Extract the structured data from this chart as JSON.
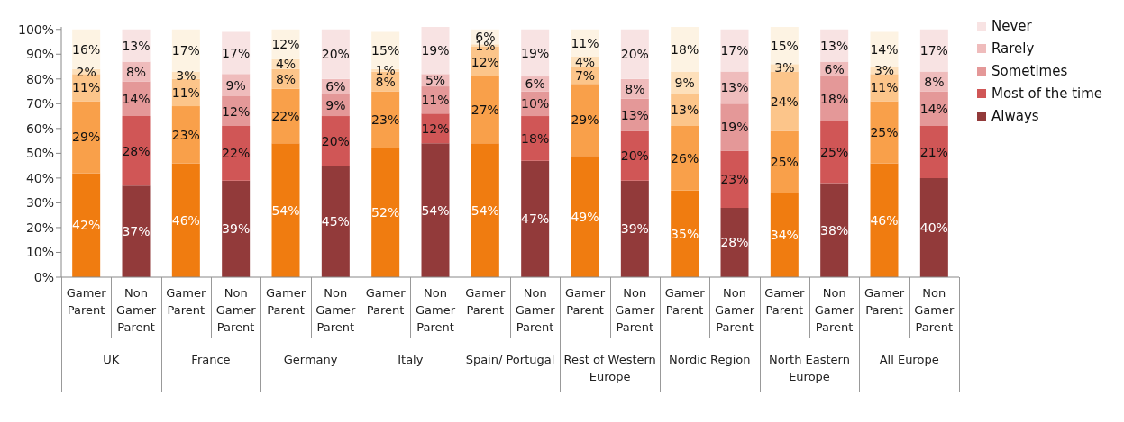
{
  "chart_data": {
    "type": "bar",
    "stacked": true,
    "categories": [
      "Gamer Parent",
      "Non Gamer Parent",
      "Gamer Parent",
      "Non Gamer Parent",
      "Gamer Parent",
      "Non Gamer Parent",
      "Gamer Parent",
      "Non Gamer Parent",
      "Gamer Parent",
      "Non Gamer Parent",
      "Gamer Parent",
      "Non Gamer Parent",
      "Gamer Parent",
      "Non Gamer Parent",
      "Gamer Parent",
      "Non Gamer Parent",
      "Gamer Parent",
      "Non Gamer Parent"
    ],
    "annotations": [
      "UK",
      "France",
      "Germany",
      "Italy",
      "Spain/ Portugal",
      "Rest of Western Europe",
      "Nordic Region",
      "North Eastern Europe",
      "All Europe"
    ],
    "series": [
      {
        "name": "Always",
        "color": "#923a3a",
        "colors": [
          "#f07c10",
          "#923a3a",
          "#f07c10",
          "#923a3a",
          "#f07c10",
          "#923a3a",
          "#f07c10",
          "#923a3a",
          "#f07c10",
          "#923a3a",
          "#f07c10",
          "#923a3a",
          "#f07c10",
          "#923a3a",
          "#f07c10",
          "#923a3a",
          "#f07c10",
          "#923a3a"
        ],
        "values": [
          42,
          37,
          46,
          39,
          54,
          45,
          52,
          54,
          54,
          47,
          49,
          39,
          35,
          28,
          34,
          38,
          46,
          40
        ],
        "value_labels": [
          "42%",
          "37%",
          "46%",
          "39%",
          "54%",
          "45%",
          "52%",
          "54%",
          "54%",
          "47%",
          "49%",
          "39%",
          "35%",
          "28%",
          "34%",
          "38%",
          "46%",
          "40%"
        ]
      },
      {
        "name": "Most of the time",
        "color": "#d05656",
        "colors": [
          "#f9a04a",
          "#d05656",
          "#f9a04a",
          "#d05656",
          "#f9a04a",
          "#d05656",
          "#f9a04a",
          "#d05656",
          "#f9a04a",
          "#d05656",
          "#f9a04a",
          "#d05656",
          "#f9a04a",
          "#d05656",
          "#f9a04a",
          "#d05656",
          "#f9a04a",
          "#d05656"
        ],
        "values": [
          29,
          28,
          23,
          22,
          22,
          20,
          23,
          12,
          27,
          18,
          29,
          20,
          26,
          23,
          25,
          25,
          25,
          21
        ],
        "value_labels": [
          "29%",
          "28%",
          "23%",
          "22%",
          "22%",
          "20%",
          "23%",
          "12%",
          "27%",
          "18%",
          "29%",
          "20%",
          "26%",
          "23%",
          "25%",
          "25%",
          "25%",
          "21%"
        ]
      },
      {
        "name": "Sometimes",
        "color": "#e49898",
        "colors": [
          "#fcc58a",
          "#e49898",
          "#fcc58a",
          "#e49898",
          "#fcc58a",
          "#e49898",
          "#fcc58a",
          "#e49898",
          "#fcc58a",
          "#e49898",
          "#fcc58a",
          "#e49898",
          "#fcc58a",
          "#e49898",
          "#fcc58a",
          "#e49898",
          "#fcc58a",
          "#e49898"
        ],
        "values": [
          11,
          14,
          11,
          12,
          8,
          9,
          8,
          11,
          12,
          10,
          7,
          13,
          13,
          19,
          24,
          18,
          11,
          14
        ],
        "value_labels": [
          "11%",
          "14%",
          "11%",
          "12%",
          "8%",
          "9%",
          "8%",
          "11%",
          "12%",
          "10%",
          "7%",
          "13%",
          "13%",
          "19%",
          "24%",
          "18%",
          "11%",
          "14%"
        ]
      },
      {
        "name": "Rarely",
        "color": "#efbcbc",
        "colors": [
          "#fde0bb",
          "#efbcbc",
          "#fde0bb",
          "#efbcbc",
          "#fde0bb",
          "#efbcbc",
          "#fde0bb",
          "#efbcbc",
          "#fde0bb",
          "#efbcbc",
          "#fde0bb",
          "#efbcbc",
          "#fde0bb",
          "#efbcbc",
          "#fde0bb",
          "#efbcbc",
          "#fde0bb",
          "#efbcbc"
        ],
        "values": [
          2,
          8,
          3,
          9,
          4,
          6,
          1,
          5,
          1,
          6,
          4,
          8,
          9,
          13,
          3,
          6,
          3,
          8
        ],
        "value_labels": [
          "2%",
          "8%",
          "3%",
          "9%",
          "4%",
          "6%",
          "1%",
          "5%",
          "1%",
          "6%",
          "4%",
          "8%",
          "9%",
          "13%",
          "3%",
          "6%",
          "3%",
          "8%"
        ]
      },
      {
        "name": "Never",
        "color": "#f8e3e3",
        "colors": [
          "#fdf3e3",
          "#f8e3e3",
          "#fdf3e3",
          "#f8e3e3",
          "#fdf3e3",
          "#f8e3e3",
          "#fdf3e3",
          "#f8e3e3",
          "#fdf3e3",
          "#f8e3e3",
          "#fdf3e3",
          "#f8e3e3",
          "#fdf3e3",
          "#f8e3e3",
          "#fdf3e3",
          "#f8e3e3",
          "#fdf3e3",
          "#f8e3e3"
        ],
        "values": [
          16,
          13,
          17,
          17,
          12,
          20,
          15,
          19,
          6,
          19,
          11,
          20,
          18,
          17,
          15,
          13,
          14,
          17
        ],
        "value_labels": [
          "16%",
          "13%",
          "17%",
          "17%",
          "12%",
          "20%",
          "15%",
          "19%",
          "6%",
          "19%",
          "11%",
          "20%",
          "18%",
          "17%",
          "15%",
          "13%",
          "14%",
          "17%"
        ]
      }
    ],
    "ylim": [
      0,
      101
    ],
    "yticks": [
      {
        "value": 0,
        "label": "0%"
      },
      {
        "value": 10,
        "label": "10%"
      },
      {
        "value": 20,
        "label": "20%"
      },
      {
        "value": 30,
        "label": "30%"
      },
      {
        "value": 40,
        "label": "40%"
      },
      {
        "value": 50,
        "label": "50%"
      },
      {
        "value": 60,
        "label": "60%"
      },
      {
        "value": 70,
        "label": "70%"
      },
      {
        "value": 80,
        "label": "80%"
      },
      {
        "value": 90,
        "label": "90%"
      },
      {
        "value": 100,
        "label": "100%"
      }
    ],
    "grid": false,
    "legend": "top right"
  }
}
